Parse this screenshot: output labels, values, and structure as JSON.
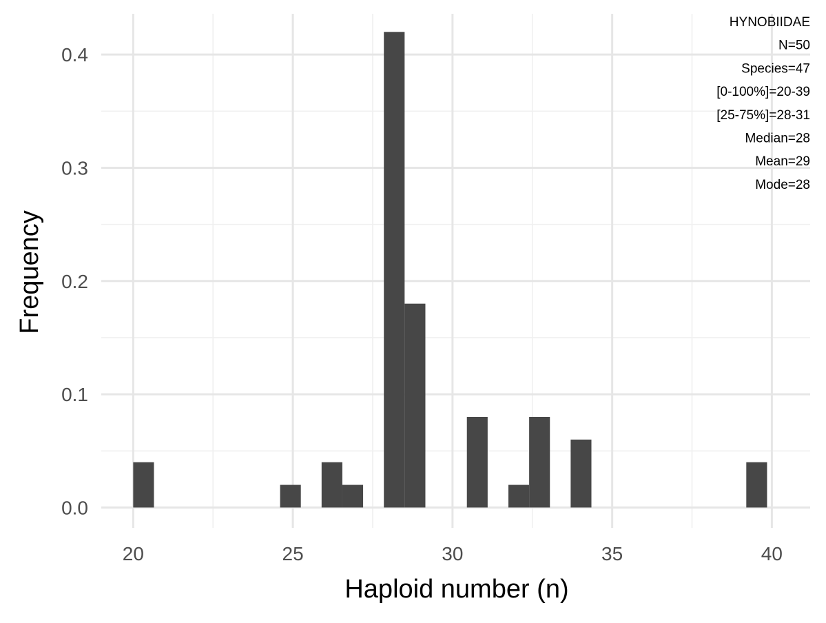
{
  "colors": {
    "background": "#ffffff",
    "grid_major": "#e6e6e6",
    "grid_minor": "#f0f0f0",
    "bar_fill": "#474747",
    "tick_text": "#4d4d4d",
    "title_text": "#000000"
  },
  "chart_data": {
    "type": "bar",
    "title": "",
    "xlabel": "Haploid number (n)",
    "ylabel": "Frequency",
    "xlim": [
      19,
      41.2
    ],
    "ylim": [
      -0.018,
      0.436
    ],
    "grid": true,
    "bin_width": 0.65,
    "x_ticks": [
      20,
      25,
      30,
      35,
      40
    ],
    "y_ticks": [
      0.0,
      0.1,
      0.2,
      0.3,
      0.4
    ],
    "x_tick_labels": [
      "20",
      "25",
      "30",
      "35",
      "40"
    ],
    "y_tick_labels": [
      "0.0",
      "0.1",
      "0.2",
      "0.3",
      "0.4"
    ],
    "bins": [
      {
        "start": 20.0,
        "value": 0.04
      },
      {
        "start": 24.6,
        "value": 0.02
      },
      {
        "start": 25.9,
        "value": 0.04
      },
      {
        "start": 26.55,
        "value": 0.02
      },
      {
        "start": 27.85,
        "value": 0.42
      },
      {
        "start": 28.5,
        "value": 0.18
      },
      {
        "start": 30.45,
        "value": 0.08
      },
      {
        "start": 31.75,
        "value": 0.02
      },
      {
        "start": 32.4,
        "value": 0.08
      },
      {
        "start": 33.7,
        "value": 0.06
      },
      {
        "start": 39.2,
        "value": 0.04
      }
    ],
    "annotation_lines": [
      "HYNOBIIDAE",
      "N=50",
      "Species=47",
      "[0-100%]=20-39",
      "[25-75%]=28-31",
      "Median=28",
      "Mean=29",
      "Mode=28"
    ],
    "annotation_position": "top-right"
  }
}
